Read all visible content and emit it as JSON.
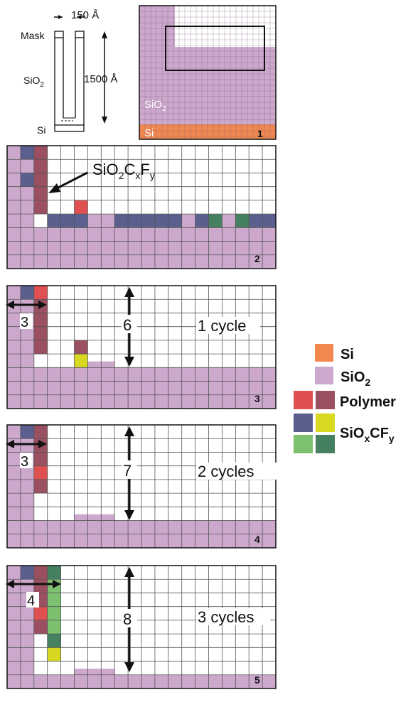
{
  "colors": {
    "si": "#F08850",
    "sio2": "#CCA8CC",
    "polymer_light": "#E05050",
    "polymer_dark": "#9A5060",
    "sioxcfy_blue": "#5A5F8E",
    "sioxcfy_yellow": "#D8D820",
    "sioxcfy_green_light": "#7CC070",
    "sioxcfy_green_dark": "#458060",
    "grid_line": "#555555",
    "background": "#ffffff"
  },
  "schematic": {
    "width_label": "150 Å",
    "mask_label": "Mask",
    "sio2_label_main": "SiO",
    "sio2_label_sub": "2",
    "depth_label": "1500 Å",
    "si_label": "Si"
  },
  "panel1": {
    "sio2_label_main": "SiO",
    "sio2_label_sub": "2",
    "si_label": "Si",
    "number": "1"
  },
  "panel2": {
    "number": "2",
    "annotation_main": "SiO",
    "annotation_sub1": "2",
    "annotation_mid1": "C",
    "annotation_sub2": "x",
    "annotation_mid2": "F",
    "annotation_sub3": "y"
  },
  "panel3": {
    "number": "3",
    "width_label": "3",
    "depth_label": "6",
    "cycle_label": "1 cycle"
  },
  "panel4": {
    "number": "4",
    "width_label": "3",
    "depth_label": "7",
    "cycle_label": "2 cycles"
  },
  "panel5": {
    "number": "5",
    "width_label": "4",
    "depth_label": "8",
    "cycle_label": "3 cycles"
  },
  "legend": {
    "si": "Si",
    "sio2_main": "SiO",
    "sio2_sub": "2",
    "polymer": "Polymer",
    "sioxcfy_main1": "SiO",
    "sioxcfy_sub1": "x",
    "sioxcfy_main2": "CF",
    "sioxcfy_sub2": "y"
  }
}
